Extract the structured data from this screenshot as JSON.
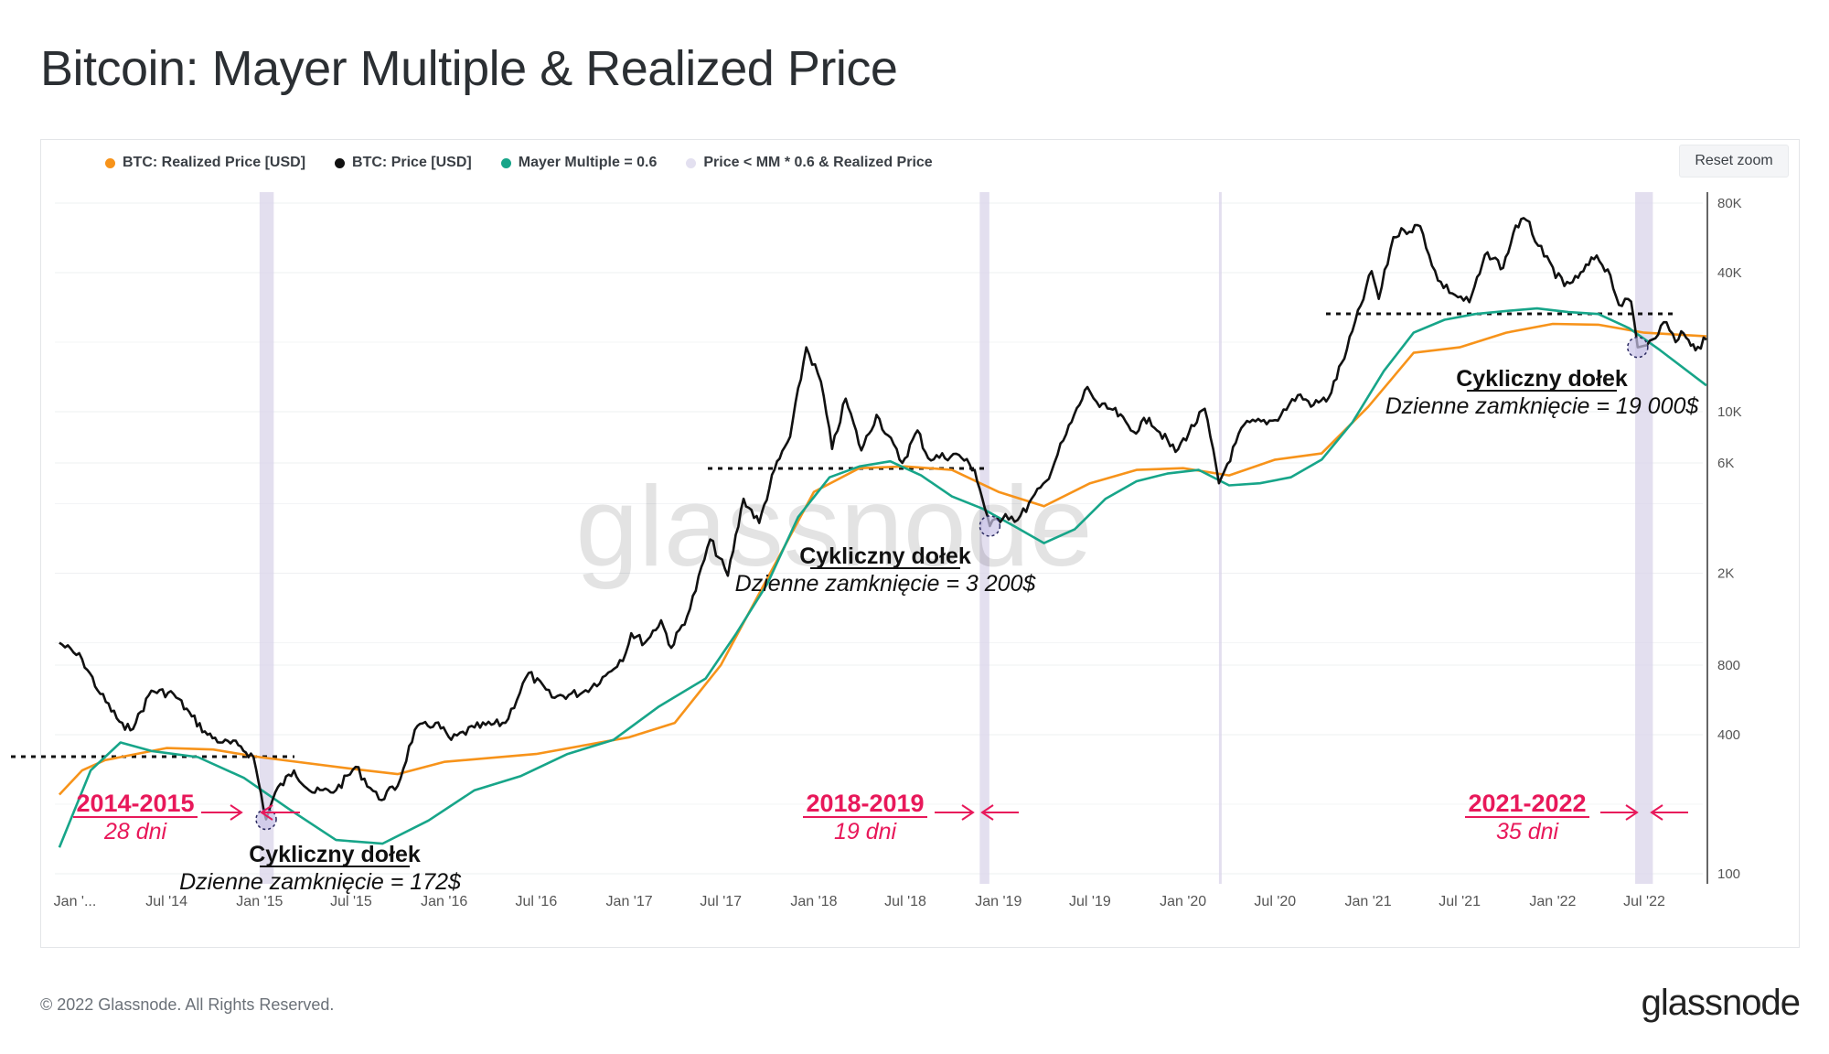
{
  "title": "Bitcoin: Mayer Multiple & Realized Price",
  "reset_zoom": "Reset zoom",
  "footer": "© 2022 Glassnode. All Rights Reserved.",
  "brand": "glassnode",
  "watermark": "glassnode",
  "legend": [
    {
      "label": "BTC: Realized Price [USD]",
      "color": "#f7931a"
    },
    {
      "label": "BTC: Price [USD]",
      "color": "#111111"
    },
    {
      "label": "Mayer Multiple = 0.6",
      "color": "#17a589"
    },
    {
      "label": "Price < MM * 0.6 & Realized Price",
      "color": "#e3e0f0"
    }
  ],
  "chart_data": {
    "type": "line",
    "yscale": "log",
    "ylim": [
      100,
      100000
    ],
    "y_ticks": [
      "80K",
      "40K",
      "10K",
      "6K",
      "2K",
      "800",
      "400",
      "100"
    ],
    "y_tick_values": [
      80000,
      40000,
      10000,
      6000,
      2000,
      800,
      400,
      100
    ],
    "x_ticks": [
      "Jan '...",
      "Jul '14",
      "Jan '15",
      "Jul '15",
      "Jan '16",
      "Jul '16",
      "Jan '17",
      "Jul '17",
      "Jan '18",
      "Jul '18",
      "Jan '19",
      "Jul '19",
      "Jan '20",
      "Jul '20",
      "Jan '21",
      "Jul '21",
      "Jan '22",
      "Jul '22"
    ],
    "x_tick_dates": [
      "2014-01-01",
      "2014-07-01",
      "2015-01-01",
      "2015-07-01",
      "2016-01-01",
      "2016-07-01",
      "2017-01-01",
      "2017-07-01",
      "2018-01-01",
      "2018-07-01",
      "2019-01-01",
      "2019-07-01",
      "2020-01-01",
      "2020-07-01",
      "2021-01-01",
      "2021-07-01",
      "2022-01-01",
      "2022-07-01"
    ],
    "series": [
      {
        "name": "BTC: Price [USD]",
        "color": "#111111",
        "points": [
          [
            "2013-12-01",
            1000
          ],
          [
            "2014-01-15",
            850
          ],
          [
            "2014-02-20",
            600
          ],
          [
            "2014-04-10",
            420
          ],
          [
            "2014-05-01",
            450
          ],
          [
            "2014-06-01",
            620
          ],
          [
            "2014-07-15",
            600
          ],
          [
            "2014-08-20",
            480
          ],
          [
            "2014-09-20",
            400
          ],
          [
            "2014-10-20",
            370
          ],
          [
            "2014-11-20",
            360
          ],
          [
            "2014-12-20",
            320
          ],
          [
            "2015-01-14",
            172
          ],
          [
            "2015-02-01",
            225
          ],
          [
            "2015-03-10",
            280
          ],
          [
            "2015-04-15",
            225
          ],
          [
            "2015-06-01",
            230
          ],
          [
            "2015-07-10",
            290
          ],
          [
            "2015-08-25",
            210
          ],
          [
            "2015-10-01",
            240
          ],
          [
            "2015-11-04",
            420
          ],
          [
            "2015-12-15",
            450
          ],
          [
            "2016-01-15",
            380
          ],
          [
            "2016-03-01",
            430
          ],
          [
            "2016-05-01",
            450
          ],
          [
            "2016-06-16",
            740
          ],
          [
            "2016-08-01",
            580
          ],
          [
            "2016-10-01",
            610
          ],
          [
            "2016-11-15",
            720
          ],
          [
            "2016-12-25",
            900
          ],
          [
            "2017-01-05",
            1100
          ],
          [
            "2017-02-01",
            1000
          ],
          [
            "2017-03-05",
            1250
          ],
          [
            "2017-03-25",
            950
          ],
          [
            "2017-05-01",
            1400
          ],
          [
            "2017-06-10",
            2800
          ],
          [
            "2017-07-15",
            1950
          ],
          [
            "2017-08-15",
            4200
          ],
          [
            "2017-09-15",
            3300
          ],
          [
            "2017-10-15",
            5600
          ],
          [
            "2017-11-15",
            7800
          ],
          [
            "2017-12-17",
            19000
          ],
          [
            "2018-01-15",
            13500
          ],
          [
            "2018-02-06",
            6900
          ],
          [
            "2018-03-05",
            11400
          ],
          [
            "2018-04-05",
            6800
          ],
          [
            "2018-05-05",
            9700
          ],
          [
            "2018-06-25",
            6000
          ],
          [
            "2018-07-25",
            8300
          ],
          [
            "2018-08-15",
            6300
          ],
          [
            "2018-10-15",
            6500
          ],
          [
            "2018-11-15",
            5600
          ],
          [
            "2018-12-15",
            3200
          ],
          [
            "2019-01-15",
            3600
          ],
          [
            "2019-02-08",
            3400
          ],
          [
            "2019-04-05",
            5000
          ],
          [
            "2019-05-15",
            8000
          ],
          [
            "2019-06-26",
            12800
          ],
          [
            "2019-07-20",
            10500
          ],
          [
            "2019-08-15",
            10200
          ],
          [
            "2019-09-25",
            8200
          ],
          [
            "2019-10-26",
            9400
          ],
          [
            "2019-12-17",
            6700
          ],
          [
            "2020-02-13",
            10300
          ],
          [
            "2020-03-12",
            4900
          ],
          [
            "2020-05-01",
            8800
          ],
          [
            "2020-07-01",
            9200
          ],
          [
            "2020-08-15",
            11800
          ],
          [
            "2020-09-15",
            10700
          ],
          [
            "2020-10-15",
            11500
          ],
          [
            "2020-11-20",
            18600
          ],
          [
            "2021-01-08",
            40600
          ],
          [
            "2021-01-22",
            30800
          ],
          [
            "2021-02-20",
            57000
          ],
          [
            "2021-03-13",
            61000
          ],
          [
            "2021-04-14",
            63500
          ],
          [
            "2021-05-19",
            37000
          ],
          [
            "2021-06-22",
            32000
          ],
          [
            "2021-07-20",
            29800
          ],
          [
            "2021-08-25",
            49000
          ],
          [
            "2021-09-25",
            42000
          ],
          [
            "2021-10-20",
            64000
          ],
          [
            "2021-11-10",
            67500
          ],
          [
            "2021-12-15",
            47000
          ],
          [
            "2022-01-24",
            35000
          ],
          [
            "2022-02-20",
            38000
          ],
          [
            "2022-03-29",
            47500
          ],
          [
            "2022-04-25",
            39000
          ],
          [
            "2022-05-12",
            29000
          ],
          [
            "2022-06-05",
            30000
          ],
          [
            "2022-06-18",
            19000
          ],
          [
            "2022-07-01",
            19300
          ],
          [
            "2022-08-14",
            24400
          ],
          [
            "2022-09-01",
            20000
          ],
          [
            "2022-09-12",
            22300
          ],
          [
            "2022-10-01",
            19300
          ],
          [
            "2022-10-15",
            19100
          ],
          [
            "2022-11-01",
            20500
          ]
        ]
      },
      {
        "name": "BTC: Realized Price [USD]",
        "color": "#f7931a",
        "points": [
          [
            "2013-12-01",
            220
          ],
          [
            "2014-01-15",
            280
          ],
          [
            "2014-03-01",
            310
          ],
          [
            "2014-07-01",
            350
          ],
          [
            "2014-10-01",
            345
          ],
          [
            "2015-01-01",
            320
          ],
          [
            "2015-07-01",
            285
          ],
          [
            "2015-10-01",
            270
          ],
          [
            "2016-01-01",
            305
          ],
          [
            "2016-07-01",
            330
          ],
          [
            "2017-01-01",
            390
          ],
          [
            "2017-04-01",
            450
          ],
          [
            "2017-07-01",
            800
          ],
          [
            "2017-10-01",
            1900
          ],
          [
            "2018-01-01",
            4500
          ],
          [
            "2018-04-01",
            5700
          ],
          [
            "2018-07-01",
            5800
          ],
          [
            "2018-10-01",
            5600
          ],
          [
            "2019-01-01",
            4500
          ],
          [
            "2019-04-01",
            3900
          ],
          [
            "2019-07-01",
            4900
          ],
          [
            "2019-10-01",
            5600
          ],
          [
            "2020-01-01",
            5700
          ],
          [
            "2020-04-01",
            5300
          ],
          [
            "2020-07-01",
            6200
          ],
          [
            "2020-10-01",
            6600
          ],
          [
            "2021-01-01",
            10500
          ],
          [
            "2021-04-01",
            18000
          ],
          [
            "2021-07-01",
            19000
          ],
          [
            "2021-10-01",
            22000
          ],
          [
            "2022-01-01",
            24000
          ],
          [
            "2022-04-01",
            23800
          ],
          [
            "2022-07-01",
            22000
          ],
          [
            "2022-11-01",
            21200
          ]
        ]
      },
      {
        "name": "Mayer Multiple = 0.6",
        "color": "#17a589",
        "points": [
          [
            "2013-12-01",
            130
          ],
          [
            "2014-02-01",
            280
          ],
          [
            "2014-04-01",
            370
          ],
          [
            "2014-06-01",
            340
          ],
          [
            "2014-09-01",
            320
          ],
          [
            "2014-12-01",
            260
          ],
          [
            "2015-03-01",
            190
          ],
          [
            "2015-06-01",
            140
          ],
          [
            "2015-09-01",
            135
          ],
          [
            "2015-12-01",
            170
          ],
          [
            "2016-03-01",
            230
          ],
          [
            "2016-06-01",
            265
          ],
          [
            "2016-09-01",
            330
          ],
          [
            "2016-12-01",
            380
          ],
          [
            "2017-03-01",
            530
          ],
          [
            "2017-06-01",
            700
          ],
          [
            "2017-08-01",
            1100
          ],
          [
            "2017-10-01",
            1800
          ],
          [
            "2017-12-01",
            3500
          ],
          [
            "2018-02-01",
            5200
          ],
          [
            "2018-04-01",
            5800
          ],
          [
            "2018-06-01",
            6100
          ],
          [
            "2018-08-01",
            5300
          ],
          [
            "2018-10-01",
            4300
          ],
          [
            "2018-12-01",
            3800
          ],
          [
            "2019-02-01",
            3200
          ],
          [
            "2019-04-01",
            2700
          ],
          [
            "2019-06-01",
            3100
          ],
          [
            "2019-08-01",
            4200
          ],
          [
            "2019-10-01",
            5000
          ],
          [
            "2019-12-01",
            5400
          ],
          [
            "2020-02-01",
            5600
          ],
          [
            "2020-04-01",
            4800
          ],
          [
            "2020-06-01",
            4900
          ],
          [
            "2020-08-01",
            5200
          ],
          [
            "2020-10-01",
            6200
          ],
          [
            "2020-12-01",
            9000
          ],
          [
            "2021-02-01",
            15000
          ],
          [
            "2021-04-01",
            22000
          ],
          [
            "2021-06-01",
            25000
          ],
          [
            "2021-08-01",
            26500
          ],
          [
            "2021-10-01",
            27300
          ],
          [
            "2021-12-01",
            28000
          ],
          [
            "2022-02-01",
            27000
          ],
          [
            "2022-04-01",
            26500
          ],
          [
            "2022-06-01",
            23000
          ],
          [
            "2022-08-01",
            18500
          ],
          [
            "2022-11-01",
            13000
          ]
        ]
      }
    ],
    "shaded_ranges": [
      [
        "2015-01-01",
        "2015-01-29"
      ],
      [
        "2018-11-25",
        "2018-12-14"
      ],
      [
        "2022-06-13",
        "2022-07-18"
      ],
      [
        "2020-03-12",
        "2020-03-16"
      ]
    ],
    "annotations": {
      "period1": {
        "label": "2014-2015",
        "days": "28 dni"
      },
      "period2": {
        "label": "2018-2019",
        "days": "19 dni"
      },
      "period3": {
        "label": "2021-2022",
        "days": "35 dni"
      },
      "bottom1": {
        "title": "Cykliczny dołek",
        "text": "Dzienne zamknięcie = 172$",
        "price": 172,
        "date": "2015-01-14"
      },
      "bottom2": {
        "title": "Cykliczny dołek",
        "text": "Dzienne zamknięcie = 3 200$",
        "price": 3200,
        "date": "2018-12-15"
      },
      "bottom3": {
        "title": "Cykliczny dołek",
        "text": "Dzienne zamknięcie = 19 000$",
        "price": 19000,
        "date": "2022-06-18"
      }
    }
  }
}
